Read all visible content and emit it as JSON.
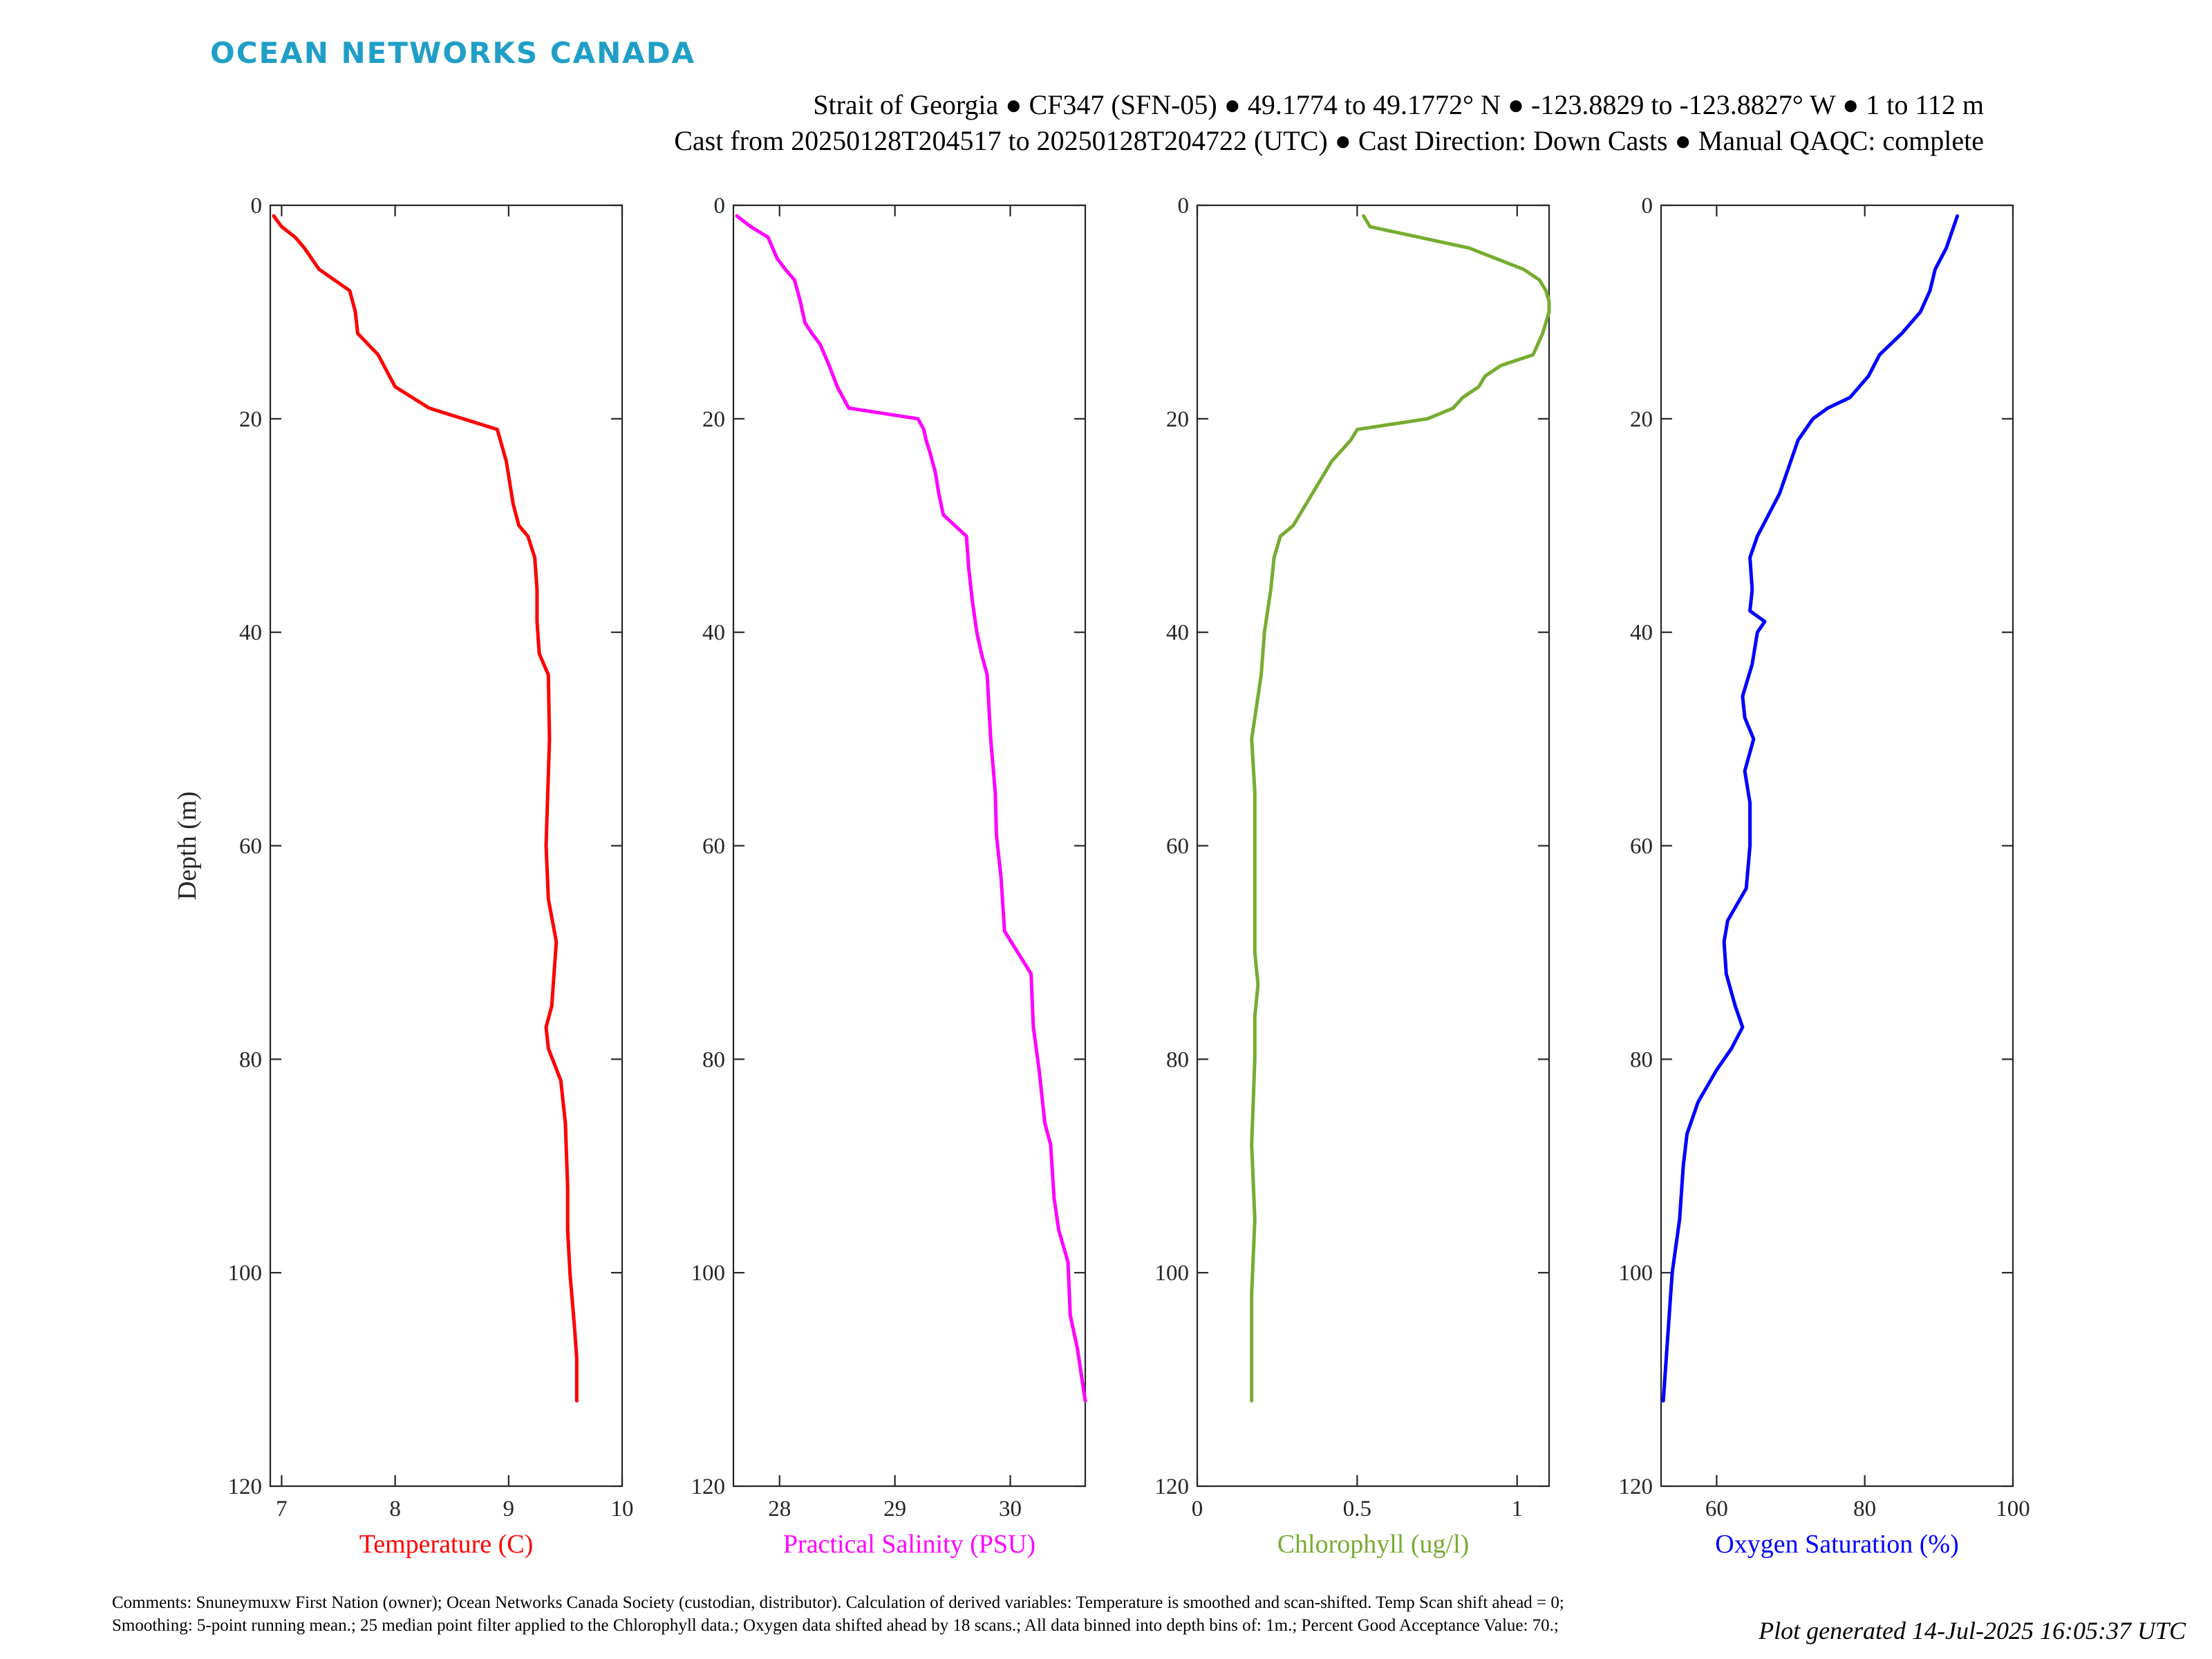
{
  "brand": "OCEAN NETWORKS CANADA",
  "header": {
    "line1": "Strait of Georgia ● CF347 (SFN-05) ● 49.1774 to 49.1772° N ● -123.8829 to -123.8827° W ● 1 to 112 m",
    "line2": "Cast from 20250128T204517 to 20250128T204722 (UTC) ● Cast Direction: Down Casts ● Manual QAQC: complete"
  },
  "comments": "Comments: Snuneymuxw First Nation (owner); Ocean Networks Canada Society (custodian, distributor). Calculation of derived variables: Temperature is smoothed and scan-shifted. Temp Scan shift ahead = 0; Smoothing: 5-point running mean.; 25 median point filter applied to the Chlorophyll data.; Oxygen data shifted ahead by 18 scans.; All data binned into depth bins of: 1m.; Percent Good Acceptance Value: 70.;",
  "generated": "Plot generated 14-Jul-2025 16:05:37 UTC",
  "chart_data": [
    {
      "type": "line",
      "xlabel": "Temperature (C)",
      "ylabel": "Depth (m)",
      "color": "#ff0000",
      "xlim": [
        6.9,
        10
      ],
      "ylim": [
        0,
        120
      ],
      "y_reversed": true,
      "xticks": [
        7,
        8,
        9,
        10
      ],
      "yticks": [
        0,
        20,
        40,
        60,
        80,
        100,
        120
      ],
      "series": [
        {
          "depth": [
            1,
            2,
            3,
            4,
            6,
            8,
            10,
            12,
            14,
            17,
            19,
            21,
            24,
            28,
            30,
            31,
            33,
            36,
            39,
            42,
            44,
            50,
            60,
            65,
            69,
            72,
            75,
            77,
            79,
            82,
            86,
            92,
            96,
            100,
            105,
            108,
            112
          ],
          "values": [
            6.93,
            7.0,
            7.12,
            7.2,
            7.33,
            7.6,
            7.65,
            7.67,
            7.85,
            8.0,
            8.3,
            8.9,
            8.98,
            9.04,
            9.09,
            9.17,
            9.23,
            9.25,
            9.25,
            9.27,
            9.35,
            9.36,
            9.33,
            9.35,
            9.42,
            9.4,
            9.38,
            9.33,
            9.35,
            9.46,
            9.5,
            9.52,
            9.52,
            9.54,
            9.58,
            9.6,
            9.6
          ]
        }
      ]
    },
    {
      "type": "line",
      "xlabel": "Practical Salinity (PSU)",
      "color": "#ff00ff",
      "xlim": [
        27.6,
        30.65
      ],
      "ylim": [
        0,
        120
      ],
      "y_reversed": true,
      "xticks": [
        28,
        29,
        30
      ],
      "yticks": [
        0,
        20,
        40,
        60,
        80,
        100,
        120
      ],
      "series": [
        {
          "depth": [
            1,
            2,
            3,
            5,
            6,
            7,
            9,
            11,
            12,
            13,
            15,
            17,
            19,
            20,
            21,
            22,
            23,
            25,
            27,
            29,
            30,
            31,
            34,
            37,
            40,
            42,
            44,
            50,
            55,
            59,
            63,
            68,
            72,
            77,
            81,
            86,
            88,
            93,
            96,
            99,
            104,
            107,
            112
          ],
          "values": [
            27.63,
            27.75,
            27.9,
            27.98,
            28.05,
            28.13,
            28.18,
            28.22,
            28.28,
            28.35,
            28.43,
            28.5,
            28.6,
            29.2,
            29.25,
            29.27,
            29.3,
            29.35,
            29.38,
            29.42,
            29.52,
            29.62,
            29.64,
            29.67,
            29.71,
            29.75,
            29.8,
            29.83,
            29.87,
            29.88,
            29.92,
            29.95,
            30.18,
            30.2,
            30.25,
            30.3,
            30.35,
            30.38,
            30.42,
            30.5,
            30.52,
            30.58,
            30.65
          ]
        }
      ]
    },
    {
      "type": "line",
      "xlabel": "Chlorophyll (ug/l)",
      "color": "#77ac30",
      "xlim": [
        0,
        1.1
      ],
      "ylim": [
        0,
        120
      ],
      "y_reversed": true,
      "xticks": [
        0,
        0.5,
        1
      ],
      "yticks": [
        0,
        20,
        40,
        60,
        80,
        100,
        120
      ],
      "series": [
        {
          "depth": [
            1,
            2,
            4,
            6,
            7,
            8,
            9,
            10,
            12,
            14,
            15,
            16,
            17,
            18,
            19,
            20,
            21,
            22,
            24,
            26,
            28,
            30,
            31,
            33,
            36,
            40,
            44,
            50,
            55,
            60,
            65,
            70,
            73,
            76,
            80,
            88,
            95,
            102,
            108,
            112
          ],
          "values": [
            0.52,
            0.54,
            0.85,
            1.02,
            1.07,
            1.09,
            1.1,
            1.1,
            1.08,
            1.05,
            0.95,
            0.9,
            0.88,
            0.83,
            0.8,
            0.72,
            0.5,
            0.48,
            0.42,
            0.38,
            0.34,
            0.3,
            0.26,
            0.24,
            0.23,
            0.21,
            0.2,
            0.17,
            0.18,
            0.18,
            0.18,
            0.18,
            0.19,
            0.18,
            0.18,
            0.17,
            0.18,
            0.17,
            0.17,
            0.17
          ]
        }
      ]
    },
    {
      "type": "line",
      "xlabel": "Oxygen Saturation (%)",
      "color": "#0000ff",
      "xlim": [
        52.5,
        100
      ],
      "ylim": [
        0,
        120
      ],
      "y_reversed": true,
      "xticks": [
        60,
        80,
        100
      ],
      "yticks": [
        0,
        20,
        40,
        60,
        80,
        100,
        120
      ],
      "series": [
        {
          "depth": [
            1,
            4,
            6,
            8,
            10,
            12,
            14,
            16,
            18,
            19,
            20,
            22,
            24,
            27,
            29,
            31,
            33,
            36,
            38,
            39,
            40,
            43,
            46,
            48,
            50,
            53,
            56,
            60,
            64,
            67,
            69,
            72,
            75,
            77,
            79,
            81,
            84,
            87,
            90,
            95,
            100,
            105,
            112
          ],
          "values": [
            92.5,
            91.0,
            89.5,
            88.8,
            87.5,
            85.0,
            82.0,
            80.5,
            78.0,
            75.0,
            73.0,
            71.0,
            70.0,
            68.5,
            67.0,
            65.5,
            64.5,
            64.8,
            64.5,
            66.5,
            65.5,
            64.8,
            63.5,
            63.8,
            65.0,
            63.8,
            64.5,
            64.5,
            64.0,
            61.5,
            61.0,
            61.3,
            62.5,
            63.5,
            62.0,
            60.0,
            57.5,
            56.0,
            55.5,
            55.0,
            54.0,
            53.5,
            52.8
          ]
        }
      ]
    }
  ]
}
